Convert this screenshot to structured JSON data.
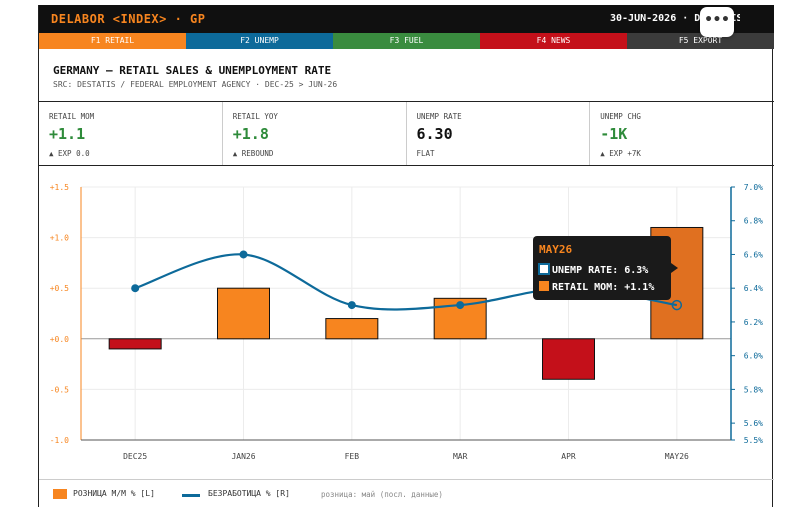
{
  "header": {
    "brand": "DELABOR <INDEX> · GP",
    "date_source": "30-JUN-2026 · DESTATIS",
    "more_label": "•••"
  },
  "fkeys": [
    {
      "label": "F1 RETAIL",
      "color": "#f7851f"
    },
    {
      "label": "F2 UNEMP",
      "color": "#0d6a9a"
    },
    {
      "label": "F3 FUEL",
      "color": "#3a8c3f"
    },
    {
      "label": "F4 NEWS",
      "color": "#c4101a"
    },
    {
      "label": "F5 EXPORT",
      "color": "#3b3b3b"
    }
  ],
  "title": "GERMANY — RETAIL SALES & UNEMPLOYMENT RATE",
  "subtitle": "SRC: DESTATIS / FEDERAL EMPLOYMENT AGENCY · DEC-25 > JUN-26",
  "stats": [
    {
      "label": "RETAIL MOM",
      "value": "+1.1",
      "note": "▲ EXP 0.0",
      "color": "#2e8b3a"
    },
    {
      "label": "RETAIL YOY",
      "value": "+1.8",
      "note": "▲ REBOUND",
      "color": "#2e8b3a"
    },
    {
      "label": "UNEMP RATE",
      "value": "6.30",
      "note": "FLAT",
      "color": "#111111"
    },
    {
      "label": "UNEMP CHG",
      "value": "-1K",
      "note": "▲ EXP +7K",
      "color": "#2e8b3a"
    }
  ],
  "chart_data": {
    "type": "bar",
    "categories": [
      "DEC25",
      "JAN26",
      "FEB",
      "MAR",
      "APR",
      "MAY26"
    ],
    "series": [
      {
        "name": "РОЗНИЦА M/M % [L]",
        "type": "bar",
        "axis": "left",
        "values": [
          -0.1,
          0.5,
          0.2,
          0.4,
          -0.4,
          1.1
        ]
      },
      {
        "name": "БЕЗРАБОТИЦА % [R]",
        "type": "line",
        "axis": "right",
        "values": [
          6.4,
          6.6,
          6.3,
          6.3,
          6.4,
          6.3
        ]
      }
    ],
    "left_axis": {
      "ylim": [
        -1.0,
        1.5
      ],
      "ticks": [
        {
          "v": 1.5,
          "label": "+1.5"
        },
        {
          "v": 1.0,
          "label": "+1.0"
        },
        {
          "v": 0.5,
          "label": "+0.5"
        },
        {
          "v": 0.0,
          "label": "+0.0"
        },
        {
          "v": -0.5,
          "label": "-0.5"
        },
        {
          "v": -1.0,
          "label": "-1.0"
        }
      ],
      "color": "#f7851f"
    },
    "right_axis": {
      "ylim": [
        5.5,
        7.0
      ],
      "ticks": [
        {
          "v": 7.0,
          "label": "7.0%"
        },
        {
          "v": 6.8,
          "label": "6.8%"
        },
        {
          "v": 6.6,
          "label": "6.6%"
        },
        {
          "v": 6.4,
          "label": "6.4%"
        },
        {
          "v": 6.2,
          "label": "6.2%"
        },
        {
          "v": 6.0,
          "label": "6.0%"
        },
        {
          "v": 5.8,
          "label": "5.8%"
        },
        {
          "v": 5.6,
          "label": "5.6%"
        },
        {
          "v": 5.5,
          "label": "5.5%"
        }
      ],
      "color": "#0d6a9a"
    },
    "colors": {
      "positive": "#f7851f",
      "negative": "#c4101a",
      "highlight": "#e07020",
      "line": "#0d6a9a"
    },
    "grid": true,
    "legend": "bottom-left",
    "tooltip": {
      "title": "MAY26",
      "rows": [
        "UNEMP RATE: 6.3%",
        "RETAIL MOM: +1.1%"
      ]
    }
  },
  "legend": {
    "bar_label": "РОЗНИЦА M/M % [L]",
    "line_label": "БЕЗРАБОТИЦА % [R]",
    "note": "розница: май (посл. данные)"
  }
}
